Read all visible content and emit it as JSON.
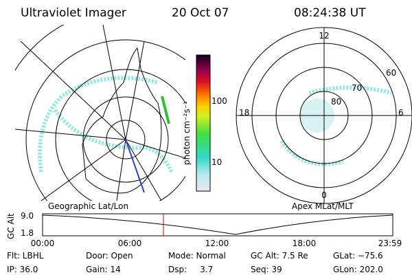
{
  "header": {
    "title": "Ultraviolet Imager",
    "date": "20 Oct 07",
    "time": "08:24:38 UT"
  },
  "left_panel": {
    "label": "Geographic Lat/Lon"
  },
  "right_panel": {
    "label": "Apex MLat/MLT",
    "mlt_labels": [
      "12",
      "18",
      "6",
      "0"
    ],
    "lat_labels": [
      "60",
      "70",
      "80"
    ]
  },
  "colorbar": {
    "axis_label": "photon cm⁻²s⁻¹",
    "tick_labels": [
      "100",
      "10"
    ]
  },
  "altitude_plot": {
    "y_label": "GC Alt",
    "y_tick_labels": [
      "9.0",
      "1.8"
    ],
    "x_tick_labels": [
      "00:00",
      "06:00",
      "12:00",
      "18:00",
      "23:59"
    ]
  },
  "footer": [
    [
      "Flt: LBHL",
      "Door: Open",
      "Mode: Normal",
      "GC Alt: 7.5 Re",
      "GLat: −75.6"
    ],
    [
      "IP: 36.0",
      "Gain: 14",
      "Dsp:     3.7",
      "Seq: 39",
      "GLon: 202.0"
    ]
  ]
}
